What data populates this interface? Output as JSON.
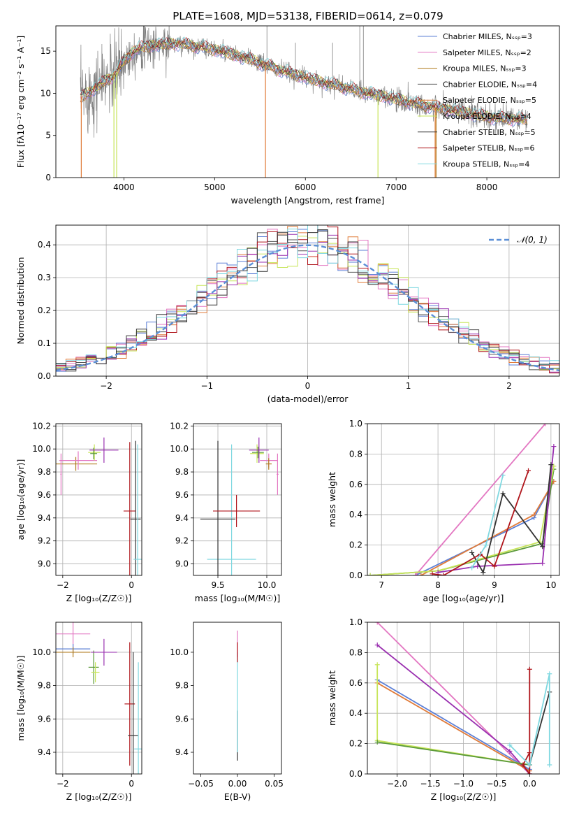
{
  "chart_data": [
    {
      "id": "spectrum",
      "type": "line",
      "title": "PLATE=1608, MJD=53138, FIBERID=0614, z=0.079",
      "xlabel": "wavelength [Angstrom, rest frame]",
      "ylabel": "Flux [fλ10⁻¹⁷ erg cm⁻² s⁻¹ A⁻¹]",
      "xlim": [
        3250,
        8800
      ],
      "ylim": [
        0,
        18
      ],
      "xticks": [
        4000,
        5000,
        6000,
        7000,
        8000
      ],
      "yticks": [
        0,
        5,
        10,
        15
      ],
      "grid": false,
      "legend_position": "top-right",
      "data_color": "#808080",
      "continuum_x": [
        3520,
        3600,
        3700,
        3800,
        3900,
        4000,
        4100,
        4200,
        4400,
        4600,
        4800,
        5000,
        5200,
        5400,
        5600,
        5800,
        6000,
        6200,
        6400,
        6600,
        6800,
        7000,
        7200,
        7400,
        7600,
        7800,
        8000,
        8200,
        8400
      ],
      "continuum_y": [
        9.5,
        10.0,
        10.8,
        11.5,
        12.2,
        13.8,
        15.0,
        15.5,
        15.8,
        15.9,
        15.6,
        15.2,
        14.6,
        14.0,
        13.2,
        12.5,
        11.9,
        11.3,
        10.8,
        10.2,
        9.8,
        9.3,
        8.8,
        8.4,
        8.0,
        7.6,
        7.2,
        7.0,
        6.9
      ],
      "series": [
        {
          "name": "Chabrier MILES, Nₛₛₚ=3",
          "color": "#5b7fd6"
        },
        {
          "name": "Salpeter MILES, Nₛₛₚ=2",
          "color": "#e377c2"
        },
        {
          "name": "Kroupa MILES, Nₛₛₚ=3",
          "color": "#b07a1c"
        },
        {
          "name": "Chabrier ELODIE, Nₛₛₚ=4",
          "color": "#555555"
        },
        {
          "name": "Salpeter ELODIE, Nₛₛₚ=5",
          "color": "#e07b39"
        },
        {
          "name": "Kroupa ELODIE, Nₛₛₚ=4",
          "color": "#c7e55a"
        },
        {
          "name": "Chabrier STELIB, Nₛₛₚ=5",
          "color": "#333333"
        },
        {
          "name": "Salpeter STELIB, Nₛₛₚ=6",
          "color": "#b0161c"
        },
        {
          "name": "Kroupa STELIB, Nₛₛₚ=4",
          "color": "#7fd8e0"
        }
      ]
    },
    {
      "id": "residuals",
      "type": "line",
      "xlabel": "(data-model)/error",
      "ylabel": "Normed distribution",
      "xlim": [
        -2.5,
        2.5
      ],
      "ylim": [
        0,
        0.46
      ],
      "xticks": [
        -2,
        -1,
        0,
        1,
        2
      ],
      "yticks": [
        0.0,
        0.1,
        0.2,
        0.3,
        0.4
      ],
      "grid": true,
      "legend_position": "top-right",
      "gaussian_label": "𝒩(0, 1)",
      "gaussian_color": "#5b8fd6",
      "series_colors": [
        "#5b7fd6",
        "#e377c2",
        "#e07b39",
        "#555555",
        "#c7e55a",
        "#9a30b0",
        "#b0161c",
        "#7fd8e0",
        "#333333"
      ]
    },
    {
      "id": "age_vs_Z",
      "type": "scatter",
      "xlabel": "Z [log₁₀(Z/Z☉)]",
      "ylabel": "age  [log₁₀(age/yr)]",
      "xlim": [
        -2.2,
        0.3
      ],
      "ylim": [
        8.9,
        10.22
      ],
      "xticks": [
        -2,
        0
      ],
      "yticks": [
        9.0,
        9.2,
        9.4,
        9.6,
        9.8,
        10.0,
        10.2
      ],
      "grid": true,
      "points": [
        {
          "x": -1.62,
          "y": 9.87,
          "xerr": 0.62,
          "yerr": 0.06,
          "color": "#b07a1c"
        },
        {
          "x": -1.55,
          "y": 9.9,
          "xerr": 0.55,
          "yerr": 0.08,
          "color": "#e377c2"
        },
        {
          "x": -1.08,
          "y": 9.97,
          "xerr": 0.18,
          "yerr": 0.07,
          "color": "#c7e55a"
        },
        {
          "x": -1.1,
          "y": 9.96,
          "xerr": 0.1,
          "yerr": 0.05,
          "color": "#5b9a3a"
        },
        {
          "x": -0.8,
          "y": 9.99,
          "xerr": 0.42,
          "yerr": 0.11,
          "color": "#9a30b0"
        },
        {
          "x": -2.05,
          "y": 9.78,
          "xerr": 0.02,
          "yerr": 0.18,
          "color": "#e377c2"
        },
        {
          "x": -0.05,
          "y": 9.46,
          "xerr": 0.18,
          "yerr": 0.6,
          "color": "#b0161c"
        },
        {
          "x": 0.12,
          "y": 9.39,
          "xerr": 0.15,
          "yerr": 0.68,
          "color": "#333333"
        },
        {
          "x": 0.18,
          "y": 9.04,
          "xerr": 0.12,
          "yerr": 1.0,
          "color": "#7fd8e0"
        }
      ]
    },
    {
      "id": "age_vs_mass",
      "type": "scatter",
      "xlabel": "mass [log₁₀(M/M☉)]",
      "ylabel": "",
      "xlim": [
        9.25,
        10.15
      ],
      "ylim": [
        8.9,
        10.22
      ],
      "xticks": [
        9.5,
        10.0
      ],
      "yticks": [
        9.0,
        9.2,
        9.4,
        9.6,
        9.8,
        10.0,
        10.2
      ],
      "grid": true,
      "points": [
        {
          "x": 9.64,
          "y": 9.04,
          "xerr": 0.25,
          "yerr": 1.0,
          "color": "#7fd8e0"
        },
        {
          "x": 9.5,
          "y": 9.39,
          "xerr": 0.18,
          "yerr": 0.68,
          "color": "#333333"
        },
        {
          "x": 9.69,
          "y": 9.46,
          "xerr": 0.24,
          "yerr": 0.14,
          "color": "#b0161c"
        },
        {
          "x": 9.9,
          "y": 9.96,
          "xerr": 0.07,
          "yerr": 0.08,
          "color": "#c7e55a"
        },
        {
          "x": 9.91,
          "y": 9.97,
          "xerr": 0.06,
          "yerr": 0.05,
          "color": "#5b9a3a"
        },
        {
          "x": 9.92,
          "y": 9.99,
          "xerr": 0.1,
          "yerr": 0.11,
          "color": "#9a30b0"
        },
        {
          "x": 10.02,
          "y": 9.9,
          "xerr": 0.09,
          "yerr": 0.06,
          "color": "#e377c2"
        },
        {
          "x": 10.02,
          "y": 9.87,
          "xerr": 0.03,
          "yerr": 0.05,
          "color": "#b07a1c"
        },
        {
          "x": 10.11,
          "y": 9.78,
          "xerr": 0.01,
          "yerr": 0.18,
          "color": "#e377c2"
        }
      ]
    },
    {
      "id": "weight_vs_age",
      "type": "line",
      "xlabel": "age  [log₁₀(age/yr)]",
      "ylabel": "mass weight",
      "xlim": [
        6.75,
        10.15
      ],
      "ylim": [
        0.0,
        1.0
      ],
      "xticks": [
        7,
        8,
        9,
        10
      ],
      "yticks": [
        0.0,
        0.2,
        0.4,
        0.6,
        0.8,
        1.0
      ],
      "grid": true,
      "series": [
        {
          "color": "#5b7fd6",
          "x": [
            7.6,
            9.7,
            10.05
          ],
          "y": [
            0.0,
            0.38,
            0.62
          ]
        },
        {
          "color": "#e377c2",
          "x": [
            7.6,
            9.9
          ],
          "y": [
            0.0,
            1.0
          ]
        },
        {
          "color": "#e07b39",
          "x": [
            7.7,
            9.7,
            10.05
          ],
          "y": [
            0.0,
            0.4,
            0.62
          ]
        },
        {
          "color": "#5b9a3a",
          "x": [
            6.8,
            8.0,
            9.85,
            10.05
          ],
          "y": [
            0.0,
            0.03,
            0.21,
            0.7
          ]
        },
        {
          "color": "#c7e55a",
          "x": [
            6.8,
            8.0,
            9.8,
            10.05
          ],
          "y": [
            0.0,
            0.03,
            0.22,
            0.72
          ]
        },
        {
          "color": "#9a30b0",
          "x": [
            8.0,
            8.7,
            9.85,
            10.05
          ],
          "y": [
            0.02,
            0.06,
            0.08,
            0.85
          ]
        },
        {
          "color": "#333333",
          "x": [
            8.6,
            8.8,
            9.15,
            9.85,
            10.0
          ],
          "y": [
            0.15,
            0.02,
            0.54,
            0.19,
            0.73
          ]
        },
        {
          "color": "#b0161c",
          "x": [
            7.9,
            8.1,
            8.75,
            9.0,
            9.6
          ],
          "y": [
            0.01,
            0.0,
            0.14,
            0.06,
            0.69
          ]
        },
        {
          "color": "#7fd8e0",
          "x": [
            8.6,
            8.85,
            9.15
          ],
          "y": [
            0.05,
            0.2,
            0.66
          ]
        }
      ]
    },
    {
      "id": "mass_vs_Z",
      "type": "scatter",
      "xlabel": "Z [log₁₀(Z/Z☉)]",
      "ylabel": "mass [log₁₀(M/M☉)]",
      "xlim": [
        -2.2,
        0.3
      ],
      "ylim": [
        9.27,
        10.18
      ],
      "xticks": [
        -2,
        0
      ],
      "yticks": [
        9.4,
        9.6,
        9.8,
        10.0
      ],
      "grid": true,
      "points": [
        {
          "x": -1.7,
          "y": 10.11,
          "xerr": 0.5,
          "yerr": 0.08,
          "color": "#e377c2"
        },
        {
          "x": -1.7,
          "y": 10.02,
          "xerr": 0.5,
          "yerr": 0.03,
          "color": "#5b7fd6"
        },
        {
          "x": -1.7,
          "y": 10.0,
          "xerr": 0.5,
          "yerr": 0.03,
          "color": "#b07a1c"
        },
        {
          "x": -1.1,
          "y": 9.91,
          "xerr": 0.15,
          "yerr": 0.1,
          "color": "#5b9a3a"
        },
        {
          "x": -1.05,
          "y": 9.88,
          "xerr": 0.12,
          "yerr": 0.06,
          "color": "#c7e55a"
        },
        {
          "x": -0.8,
          "y": 10.0,
          "xerr": 0.38,
          "yerr": 0.08,
          "color": "#9a30b0"
        },
        {
          "x": -0.05,
          "y": 9.69,
          "xerr": 0.15,
          "yerr": 0.37,
          "color": "#b0161c"
        },
        {
          "x": 0.05,
          "y": 9.5,
          "xerr": 0.15,
          "yerr": 0.5,
          "color": "#333333"
        },
        {
          "x": 0.2,
          "y": 9.42,
          "xerr": 0.12,
          "yerr": 0.52,
          "color": "#7fd8e0"
        }
      ]
    },
    {
      "id": "mass_vs_ebv",
      "type": "scatter",
      "xlabel": "E(B-V)",
      "ylabel": "",
      "xlim": [
        -0.06,
        0.06
      ],
      "ylim": [
        9.27,
        10.18
      ],
      "xticks": [
        -0.05,
        0.0,
        0.05
      ],
      "xtick_labels": [
        "−0.05",
        "0.00",
        "0.05"
      ],
      "yticks": [
        9.4,
        9.6,
        9.8,
        10.0
      ],
      "grid": false,
      "points": [
        {
          "x": 0.0,
          "y": 9.5,
          "xerr": 0,
          "yerr": 0.15,
          "color": "#333333"
        },
        {
          "x": 0.0,
          "y": 9.7,
          "xerr": 0,
          "yerr": 0.3,
          "color": "#7fd8e0"
        },
        {
          "x": 0.0,
          "y": 10.05,
          "xerr": 0,
          "yerr": 0.08,
          "color": "#e377c2"
        },
        {
          "x": 0.0,
          "y": 10.0,
          "xerr": 0,
          "yerr": 0.06,
          "color": "#b0161c"
        }
      ]
    },
    {
      "id": "weight_vs_Z",
      "type": "line",
      "xlabel": "Z [log₁₀(Z/Z☉)]",
      "ylabel": "mass weight",
      "xlim": [
        -2.45,
        0.45
      ],
      "ylim": [
        0.0,
        1.0
      ],
      "xticks": [
        -2.0,
        -1.5,
        -1.0,
        -0.5,
        0.0
      ],
      "xtick_labels": [
        "−2.0",
        "−1.5",
        "−1.0",
        "−0.5",
        "0.0"
      ],
      "yticks": [
        0.0,
        0.2,
        0.4,
        0.6,
        0.8,
        1.0
      ],
      "grid": true,
      "series": [
        {
          "color": "#e377c2",
          "x": [
            -2.3,
            0.0
          ],
          "y": [
            1.0,
            0.0
          ]
        },
        {
          "color": "#9a30b0",
          "x": [
            -2.3,
            -0.3,
            0.0
          ],
          "y": [
            0.85,
            0.15,
            0.0
          ]
        },
        {
          "color": "#5b7fd6",
          "x": [
            -2.3,
            0.0
          ],
          "y": [
            0.62,
            0.03
          ]
        },
        {
          "color": "#e07b39",
          "x": [
            -2.3,
            0.0
          ],
          "y": [
            0.6,
            0.02
          ]
        },
        {
          "color": "#c7e55a",
          "x": [
            -2.3,
            -2.3,
            0.0
          ],
          "y": [
            0.72,
            0.22,
            0.06
          ]
        },
        {
          "color": "#5b9a3a",
          "x": [
            -2.3,
            0.0
          ],
          "y": [
            0.21,
            0.06
          ]
        },
        {
          "color": "#b0161c",
          "x": [
            0.0,
            0.0,
            -0.1,
            0.0
          ],
          "y": [
            0.69,
            0.0,
            0.06,
            0.14
          ]
        },
        {
          "color": "#333333",
          "x": [
            0.0,
            0.3
          ],
          "y": [
            0.06,
            0.54
          ]
        },
        {
          "color": "#7fd8e0",
          "x": [
            -0.3,
            0.0,
            0.3,
            0.3
          ],
          "y": [
            0.19,
            0.06,
            0.66,
            0.06
          ]
        }
      ]
    }
  ]
}
